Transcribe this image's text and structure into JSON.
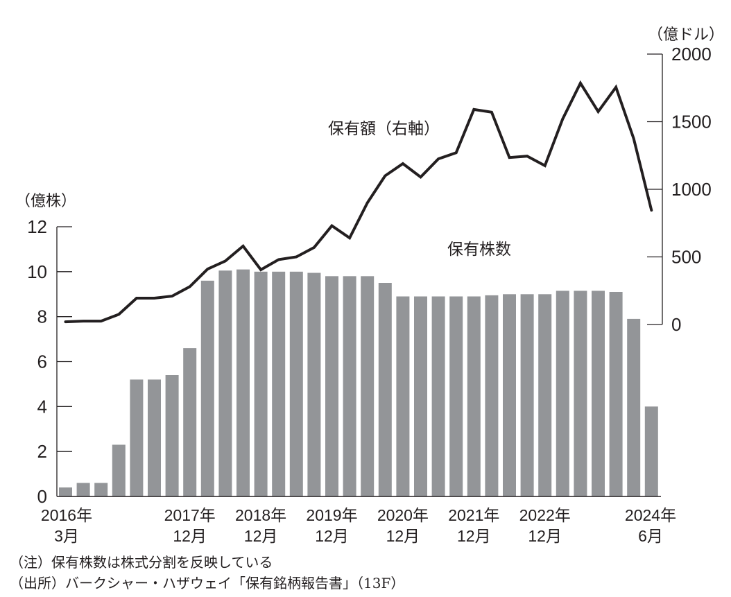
{
  "chart_data": {
    "type": "bar+line",
    "title": "",
    "left_axis": {
      "label": "（億株）",
      "ticks": [
        0,
        2,
        4,
        6,
        8,
        10,
        12
      ],
      "range": [
        0,
        12
      ]
    },
    "right_axis": {
      "label": "（億ドル）",
      "ticks": [
        0,
        500,
        1000,
        1500,
        2000
      ],
      "range": [
        0,
        2000
      ]
    },
    "x_tick_labels": [
      {
        "index": 0,
        "year": "2016年",
        "month": "3月"
      },
      {
        "index": 7,
        "year": "2017年",
        "month": "12月"
      },
      {
        "index": 11,
        "year": "2018年",
        "month": "12月"
      },
      {
        "index": 15,
        "year": "2019年",
        "month": "12月"
      },
      {
        "index": 19,
        "year": "2020年",
        "month": "12月"
      },
      {
        "index": 23,
        "year": "2021年",
        "month": "12月"
      },
      {
        "index": 27,
        "year": "2022年",
        "month": "12月"
      },
      {
        "index": 33,
        "year": "2024年",
        "month": "6月"
      }
    ],
    "series": [
      {
        "name": "保有株数",
        "type": "bar",
        "axis": "left",
        "color": "#939598",
        "values": [
          0.4,
          0.6,
          0.6,
          2.3,
          5.2,
          5.2,
          5.4,
          6.6,
          9.6,
          10.05,
          10.1,
          10.0,
          10.0,
          10.0,
          9.95,
          9.8,
          9.8,
          9.8,
          9.5,
          8.9,
          8.9,
          8.9,
          8.9,
          8.9,
          8.95,
          9.0,
          9.0,
          9.0,
          9.15,
          9.15,
          9.15,
          9.1,
          7.9,
          4.0
        ]
      },
      {
        "name": "保有額（右軸）",
        "type": "line",
        "axis": "right",
        "color": "#231f20",
        "values": [
          20,
          25,
          25,
          75,
          195,
          195,
          210,
          280,
          410,
          470,
          580,
          405,
          480,
          500,
          570,
          730,
          640,
          900,
          1100,
          1190,
          1090,
          1225,
          1270,
          1590,
          1570,
          1235,
          1245,
          1175,
          1520,
          1785,
          1575,
          1755,
          1375,
          845
        ]
      }
    ],
    "annotations": [
      {
        "text": "保有額（右軸）",
        "target": "line"
      },
      {
        "text": "保有株数",
        "target": "bars"
      }
    ],
    "grid": false,
    "legend": "none (inline labels)"
  },
  "labels": {
    "left_unit": "（億株）",
    "right_unit": "（億ドル）",
    "line_label": "保有額（右軸）",
    "bar_label": "保有株数"
  },
  "notes": {
    "note": "（注）保有株数は株式分割を反映している",
    "source": "（出所）バークシャー・ハザウェイ「保有銘柄報告書」（13F）"
  }
}
